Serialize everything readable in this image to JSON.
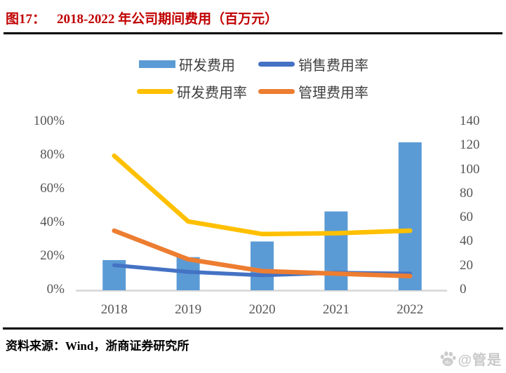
{
  "header": {
    "figure_label": "图17：",
    "title": "2018-2022 年公司期间费用（百万元）"
  },
  "footer": {
    "source": "资料来源：Wind，浙商证券研究所"
  },
  "watermark": {
    "icon": "baidu-paw",
    "text": "@管是"
  },
  "chart_data": {
    "type": "bar",
    "subtype": "combo-bar-line-dual-axis",
    "title": "2018-2022 年公司期间费用（百万元）",
    "categories": [
      "2018",
      "2019",
      "2020",
      "2021",
      "2022"
    ],
    "bar_series": {
      "name": "研发费用",
      "axis": "right",
      "unit": "百万元",
      "color": "#5B9BD5",
      "values": [
        24.5,
        27,
        40,
        65,
        122.5
      ]
    },
    "line_series": [
      {
        "name": "销售费用率",
        "axis": "left",
        "unit": "%",
        "color": "#4472C4",
        "values": [
          14.5,
          10.5,
          8.5,
          10,
          9.5
        ]
      },
      {
        "name": "研发费用率",
        "axis": "left",
        "unit": "%",
        "color": "#FFC000",
        "values": [
          79.5,
          40.5,
          33,
          33.5,
          35
        ]
      },
      {
        "name": "管理费用率",
        "axis": "left",
        "unit": "%",
        "color": "#ED7D31",
        "values": [
          35,
          18,
          11,
          9.5,
          8
        ]
      }
    ],
    "left_axis": {
      "min": 0,
      "max": 100,
      "ticks": [
        "0%",
        "20%",
        "40%",
        "60%",
        "80%",
        "100%"
      ]
    },
    "right_axis": {
      "min": 0,
      "max": 140,
      "ticks": [
        "0",
        "20",
        "40",
        "60",
        "80",
        "100",
        "120",
        "140"
      ]
    },
    "legend_position": "top",
    "grid": false,
    "baseline_color": "#d6d6d6",
    "title_color": "#c00000"
  }
}
